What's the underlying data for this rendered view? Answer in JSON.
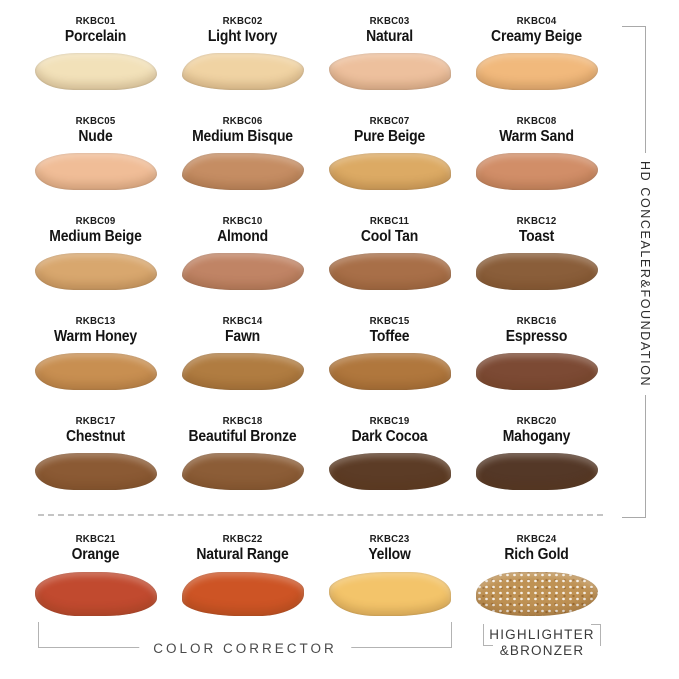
{
  "side_label": "HD CONCEALER&FOUNDATION",
  "bottom": {
    "color_corrector_label": "COLOR CORRECTOR",
    "highlighter_label_line1": "HIGHLIGHTER",
    "highlighter_label_line2": "&BRONZER"
  },
  "bracket_color": "#a9a9a9",
  "swatches": [
    {
      "code": "RKBC01",
      "name": "Porcelain",
      "color": "#f2e1b9"
    },
    {
      "code": "RKBC02",
      "name": "Light Ivory",
      "color": "#f0d3a3"
    },
    {
      "code": "RKBC03",
      "name": "Natural",
      "color": "#edc09d"
    },
    {
      "code": "RKBC04",
      "name": "Creamy Beige",
      "color": "#f1b97c"
    },
    {
      "code": "RKBC05",
      "name": "Nude",
      "color": "#f0bd97"
    },
    {
      "code": "RKBC06",
      "name": "Medium Bisque",
      "color": "#c58d63"
    },
    {
      "code": "RKBC07",
      "name": "Pure Beige",
      "color": "#dcaa64"
    },
    {
      "code": "RKBC08",
      "name": "Warm Sand",
      "color": "#d18e68"
    },
    {
      "code": "RKBC09",
      "name": "Medium Beige",
      "color": "#d8a76e"
    },
    {
      "code": "RKBC10",
      "name": "Almond",
      "color": "#c08465"
    },
    {
      "code": "RKBC11",
      "name": "Cool Tan",
      "color": "#a86f48"
    },
    {
      "code": "RKBC12",
      "name": "Toast",
      "color": "#8a5e3a"
    },
    {
      "code": "RKBC13",
      "name": "Warm Honey",
      "color": "#c88f51"
    },
    {
      "code": "RKBC14",
      "name": "Fawn",
      "color": "#b07c41"
    },
    {
      "code": "RKBC15",
      "name": "Toffee",
      "color": "#b0773d"
    },
    {
      "code": "RKBC16",
      "name": "Espresso",
      "color": "#7c4a34"
    },
    {
      "code": "RKBC17",
      "name": "Chestnut",
      "color": "#8b5a34"
    },
    {
      "code": "RKBC18",
      "name": "Beautiful Bronze",
      "color": "#8c5d37"
    },
    {
      "code": "RKBC19",
      "name": "Dark Cocoa",
      "color": "#5c3c26"
    },
    {
      "code": "RKBC20",
      "name": "Mahogany",
      "color": "#543827"
    },
    {
      "code": "RKBC21",
      "name": "Orange",
      "color": "#c14a2f"
    },
    {
      "code": "RKBC22",
      "name": "Natural Range",
      "color": "#cd5425"
    },
    {
      "code": "RKBC23",
      "name": "Yellow",
      "color": "#f3c46a"
    },
    {
      "code": "RKBC24",
      "name": "Rich Gold",
      "color": "#bf9254"
    }
  ]
}
